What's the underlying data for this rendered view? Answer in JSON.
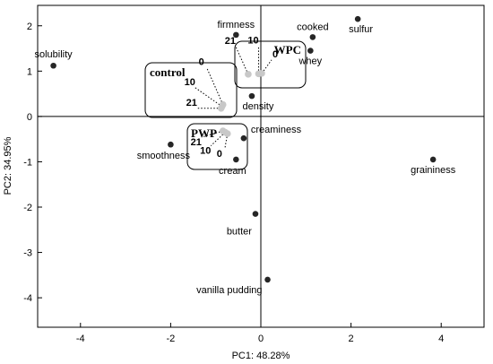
{
  "chart_data": {
    "type": "scatter",
    "xlabel": "PC1: 48.28%",
    "ylabel": "PC2: 34.95%",
    "xlim": [
      -4.95,
      4.95
    ],
    "ylim": [
      -4.65,
      2.45
    ],
    "xticks": [
      -4,
      -2,
      0,
      2,
      4
    ],
    "yticks": [
      2,
      1,
      0,
      -1,
      -2,
      -3,
      -4
    ],
    "x_tick_labels": [
      "-4",
      "-2",
      "0",
      "2",
      "4"
    ],
    "y_tick_labels": [
      "2",
      "1",
      "0",
      "-1",
      "-2",
      "-3",
      "-4"
    ],
    "grid": false,
    "zero_lines": true,
    "attributes": [
      {
        "label": "solubility",
        "x": -4.6,
        "y": 1.12,
        "label_pos": "above"
      },
      {
        "label": "firmness",
        "x": -0.55,
        "y": 1.8,
        "label_pos": "above"
      },
      {
        "label": "cooked",
        "x": 1.15,
        "y": 1.75,
        "label_pos": "above"
      },
      {
        "label": "sulfur",
        "x": 2.15,
        "y": 2.15,
        "label_pos": "below-left"
      },
      {
        "label": "whey",
        "x": 1.1,
        "y": 1.45,
        "label_pos": "below"
      },
      {
        "label": "density",
        "x": -0.2,
        "y": 0.45,
        "label_pos": "below"
      },
      {
        "label": "creaminess",
        "x": -0.38,
        "y": -0.48,
        "label_pos": "above-right"
      },
      {
        "label": "smoothness",
        "x": -2.0,
        "y": -0.62,
        "label_pos": "below-left"
      },
      {
        "label": "cream",
        "x": -0.55,
        "y": -0.95,
        "label_pos": "below"
      },
      {
        "label": "graininess",
        "x": 3.82,
        "y": -0.95,
        "label_pos": "below"
      },
      {
        "label": "butter",
        "x": -0.12,
        "y": -2.15,
        "label_pos": "below-left"
      },
      {
        "label": "vanilla pudding",
        "x": 0.15,
        "y": -3.6,
        "label_pos": "below-left"
      }
    ],
    "groups": [
      {
        "name": "control",
        "samples": [
          {
            "label": "0",
            "x": -0.84,
            "y": 0.26
          },
          {
            "label": "10",
            "x": -0.86,
            "y": 0.22
          },
          {
            "label": "21",
            "x": -0.88,
            "y": 0.18
          }
        ]
      },
      {
        "name": "WPC",
        "samples": [
          {
            "label": "21",
            "x": -0.28,
            "y": 0.93
          },
          {
            "label": "10",
            "x": -0.05,
            "y": 0.94
          },
          {
            "label": "0",
            "x": 0.02,
            "y": 0.95
          }
        ]
      },
      {
        "name": "PWP",
        "samples": [
          {
            "label": "21",
            "x": -0.84,
            "y": -0.32
          },
          {
            "label": "10",
            "x": -0.79,
            "y": -0.35
          },
          {
            "label": "0",
            "x": -0.74,
            "y": -0.38
          }
        ]
      }
    ],
    "colors": {
      "attribute_point": "#262626",
      "sample_point": "#c8c8c8",
      "axes": "#000000"
    }
  }
}
